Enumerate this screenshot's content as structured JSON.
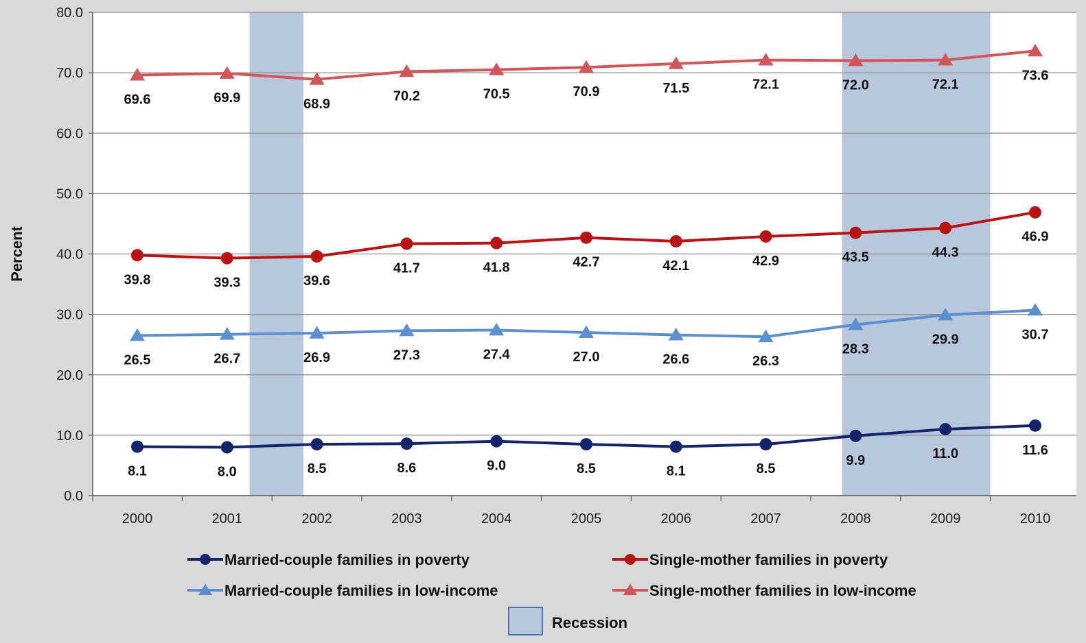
{
  "chart_data": {
    "type": "line",
    "xlabel": "",
    "ylabel": "Percent",
    "ylim": [
      0,
      80
    ],
    "y_ticks": [
      "0.0",
      "10.0",
      "20.0",
      "30.0",
      "40.0",
      "50.0",
      "60.0",
      "70.0",
      "80.0"
    ],
    "categories": [
      "2000",
      "2001",
      "2002",
      "2003",
      "2004",
      "2005",
      "2006",
      "2007",
      "2008",
      "2009",
      "2010"
    ],
    "grid": true,
    "legend_position": "bottom",
    "recession_label": "Recession",
    "recession_periods": [
      {
        "start": 2001.25,
        "end": 2001.85
      },
      {
        "start": 2007.85,
        "end": 2009.5
      }
    ],
    "series": [
      {
        "name": "Married-couple families in poverty",
        "marker": "circle",
        "color": "#13246b",
        "values": [
          8.1,
          8.0,
          8.5,
          8.6,
          9.0,
          8.5,
          8.1,
          8.5,
          9.9,
          11.0,
          11.6
        ],
        "labels": [
          "8.1",
          "8.0",
          "8.5",
          "8.6",
          "9.0",
          "8.5",
          "8.1",
          "8.5",
          "9.9",
          "11.0",
          "11.6"
        ]
      },
      {
        "name": "Single-mother families in poverty",
        "marker": "circle",
        "color": "#b81414",
        "values": [
          39.8,
          39.3,
          39.6,
          41.7,
          41.8,
          42.7,
          42.1,
          42.9,
          43.5,
          44.3,
          46.9
        ],
        "labels": [
          "39.8",
          "39.3",
          "39.6",
          "41.7",
          "41.8",
          "42.7",
          "42.1",
          "42.9",
          "43.5",
          "44.3",
          "46.9"
        ]
      },
      {
        "name": "Married-couple families in low-income",
        "marker": "triangle",
        "color": "#5b8fd0",
        "values": [
          26.5,
          26.7,
          26.9,
          27.3,
          27.4,
          27.0,
          26.6,
          26.3,
          28.3,
          29.9,
          30.7
        ],
        "labels": [
          "26.5",
          "26.7",
          "26.9",
          "27.3",
          "27.4",
          "27.0",
          "26.6",
          "26.3",
          "28.3",
          "29.9",
          "30.7"
        ]
      },
      {
        "name": "Single-mother families in low-income",
        "marker": "triangle",
        "color": "#d2555a",
        "values": [
          69.6,
          69.9,
          68.9,
          70.2,
          70.5,
          70.9,
          71.5,
          72.1,
          72.0,
          72.1,
          73.6
        ],
        "labels": [
          "69.6",
          "69.9",
          "68.9",
          "70.2",
          "70.5",
          "70.9",
          "71.5",
          "72.1",
          "72.0",
          "72.1",
          "73.6"
        ]
      }
    ]
  },
  "colors": {
    "background": "#d9d9d9",
    "plot_area": "#ffffff",
    "recession_fill": "#b8c7db",
    "grid": "#8c8c8c"
  }
}
